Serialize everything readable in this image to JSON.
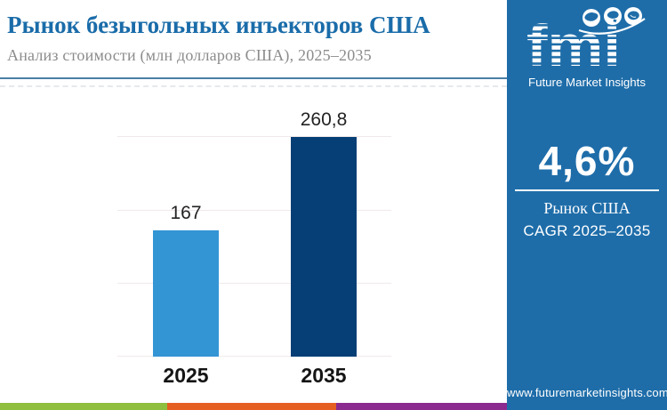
{
  "header": {
    "title": "Рынок безыгольных инъекторов США",
    "subtitle": "Анализ стоимости (млн долларов США), 2025–2035"
  },
  "logo": {
    "name": "fmi",
    "caption": "Future Market Insights"
  },
  "sidebar": {
    "stat_value": "4,6%",
    "stat_label_line1": "Рынок США",
    "stat_label_line2": "CAGR 2025–2035",
    "website": "www.futuremarketinsights.com"
  },
  "chart_data": {
    "type": "bar",
    "title": "Рынок безыгольных инъекторов США",
    "subtitle": "Анализ стоимости (млн долларов США), 2025–2035",
    "categories": [
      "2025",
      "2035"
    ],
    "values": [
      167,
      260.8
    ],
    "value_labels": [
      "167",
      "260,8"
    ],
    "unit": "млн долларов США",
    "series_colors": [
      "#3495d5",
      "#053f75"
    ],
    "ylim": [
      40,
      262
    ],
    "grid": true,
    "gridline_count": 4,
    "legend": "none",
    "annotation_cagr": "4,6%"
  },
  "colors": {
    "sidebar_blue": "#1e6da9",
    "title_blue": "#1a6ca9",
    "header_rule": "#4b7ea6",
    "bar_light": "#3495d5",
    "bar_dark": "#053f75",
    "gridline": "#f1e9e9",
    "stripe_green": "#8ebf3f",
    "stripe_orange": "#e55f22",
    "stripe_purple": "#8b2a8f"
  }
}
